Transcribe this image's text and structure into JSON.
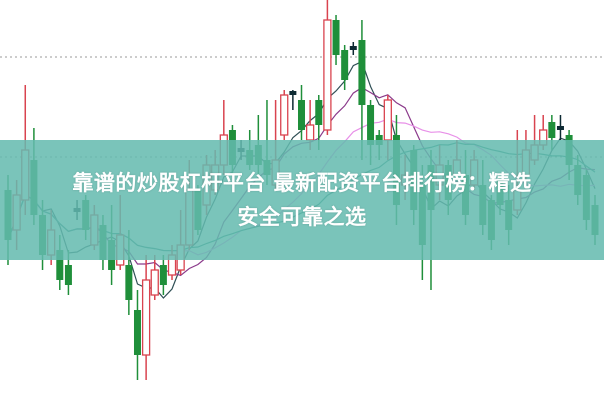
{
  "banner": {
    "line1": "靠谱的炒股杠杆平台 最新配资平台排行榜：精选",
    "line2": "安全可靠之选",
    "color": "#64baaf"
  },
  "chart_data": {
    "type": "candlestick",
    "ylim": [
      0,
      40
    ],
    "grid": {
      "horizontal_dotted": [
        34.3,
        24.3
      ]
    },
    "colors": {
      "up": "#d9434f",
      "down": "#1f8f3a",
      "doji": "#0d2a33",
      "ma_lines": [
        "#2f4f55",
        "#8b3a8b",
        "#e890e8",
        "#2a8a7a"
      ]
    },
    "moving_average_periods": [
      5,
      10,
      20,
      30
    ],
    "candles": [
      [
        21.0,
        16.0,
        22.5,
        13.5
      ],
      [
        17.0,
        20.5,
        22.0,
        15.0
      ],
      [
        20.0,
        25.0,
        31.5,
        18.5
      ],
      [
        24.0,
        18.5,
        27.2,
        17.5
      ],
      [
        18.5,
        14.5,
        20.0,
        13.0
      ],
      [
        14.5,
        17.0,
        19.0,
        13.5
      ],
      [
        15.0,
        12.0,
        16.5,
        11.0
      ],
      [
        13.5,
        11.5,
        15.0,
        10.5
      ],
      [
        19.0,
        19.0,
        20.0,
        18.0
      ],
      [
        20.0,
        17.0,
        20.5,
        16.0
      ],
      [
        15.5,
        18.5,
        19.5,
        15.0
      ],
      [
        17.5,
        14.0,
        18.5,
        13.0
      ],
      [
        16.0,
        13.0,
        19.5,
        11.5
      ],
      [
        13.5,
        16.5,
        20.5,
        13.0
      ],
      [
        13.5,
        10.0,
        17.0,
        8.5
      ],
      [
        9.0,
        4.5,
        11.0,
        2.0
      ],
      [
        4.5,
        12.0,
        14.5,
        2.0
      ],
      [
        10.5,
        13.0,
        14.5,
        10.0
      ],
      [
        13.5,
        11.5,
        14.5,
        10.5
      ],
      [
        12.5,
        14.5,
        15.5,
        12.0
      ],
      [
        13.0,
        15.5,
        19.0,
        12.5
      ],
      [
        15.5,
        21.0,
        24.0,
        15.0
      ],
      [
        21.0,
        17.0,
        21.5,
        16.5
      ],
      [
        19.5,
        23.5,
        24.5,
        18.5
      ],
      [
        21.0,
        23.5,
        25.0,
        20.5
      ],
      [
        23.5,
        26.5,
        30.0,
        22.5
      ],
      [
        27.0,
        23.5,
        27.5,
        22.5
      ],
      [
        25.0,
        25.0,
        26.0,
        24.0
      ],
      [
        25.0,
        23.5,
        27.0,
        23.0
      ],
      [
        25.5,
        23.5,
        28.5,
        22.0
      ],
      [
        24.0,
        22.5,
        30.0,
        21.5
      ],
      [
        21.5,
        24.0,
        30.0,
        21.0
      ],
      [
        26.5,
        30.5,
        31.0,
        26.0
      ],
      [
        30.7,
        30.7,
        31.0,
        29.0
      ],
      [
        30.0,
        27.0,
        31.5,
        26.0
      ],
      [
        26.0,
        27.5,
        30.0,
        25.0
      ],
      [
        30.0,
        27.5,
        30.5,
        25.0
      ],
      [
        27.0,
        38.0,
        40.0,
        26.5
      ],
      [
        38.0,
        34.5,
        38.5,
        33.5
      ],
      [
        35.0,
        32.0,
        35.5,
        31.0
      ],
      [
        35.2,
        35.2,
        35.8,
        34.5
      ],
      [
        36.0,
        29.5,
        38.0,
        24.0
      ],
      [
        29.5,
        25.5,
        30.0,
        23.5
      ],
      [
        26.5,
        25.5,
        27.0,
        24.0
      ],
      [
        26.0,
        30.0,
        30.5,
        24.0
      ],
      [
        26.5,
        19.5,
        28.5,
        17.5
      ],
      [
        21.5,
        22.5,
        24.5,
        20.0
      ],
      [
        25.0,
        19.0,
        25.5,
        17.5
      ],
      [
        21.5,
        15.5,
        23.5,
        12.0
      ],
      [
        23.5,
        19.0,
        25.0,
        11.0
      ],
      [
        21.5,
        23.5,
        25.5,
        20.0
      ],
      [
        23.5,
        20.0,
        24.0,
        18.5
      ],
      [
        22.5,
        24.0,
        26.0,
        22.0
      ],
      [
        22.5,
        18.5,
        25.0,
        17.5
      ],
      [
        21.5,
        24.0,
        25.0,
        21.0
      ],
      [
        21.5,
        17.5,
        24.0,
        16.5
      ],
      [
        20.0,
        16.0,
        20.5,
        15.0
      ],
      [
        22.0,
        19.5,
        22.5,
        18.5
      ],
      [
        20.0,
        17.0,
        21.5,
        15.5
      ],
      [
        19.0,
        21.0,
        27.0,
        18.5
      ],
      [
        22.5,
        25.0,
        27.0,
        21.5
      ],
      [
        24.0,
        25.5,
        28.5,
        23.5
      ],
      [
        25.5,
        27.0,
        28.5,
        25.0
      ],
      [
        27.8,
        26.2,
        28.5,
        25.0
      ],
      [
        27.2,
        27.2,
        28.5,
        26.0
      ],
      [
        26.5,
        23.5,
        27.0,
        22.0
      ],
      [
        23.5,
        20.5,
        24.5,
        19.5
      ],
      [
        22.5,
        18.0,
        23.0,
        17.0
      ],
      [
        19.5,
        16.5,
        20.5,
        15.5
      ]
    ]
  }
}
